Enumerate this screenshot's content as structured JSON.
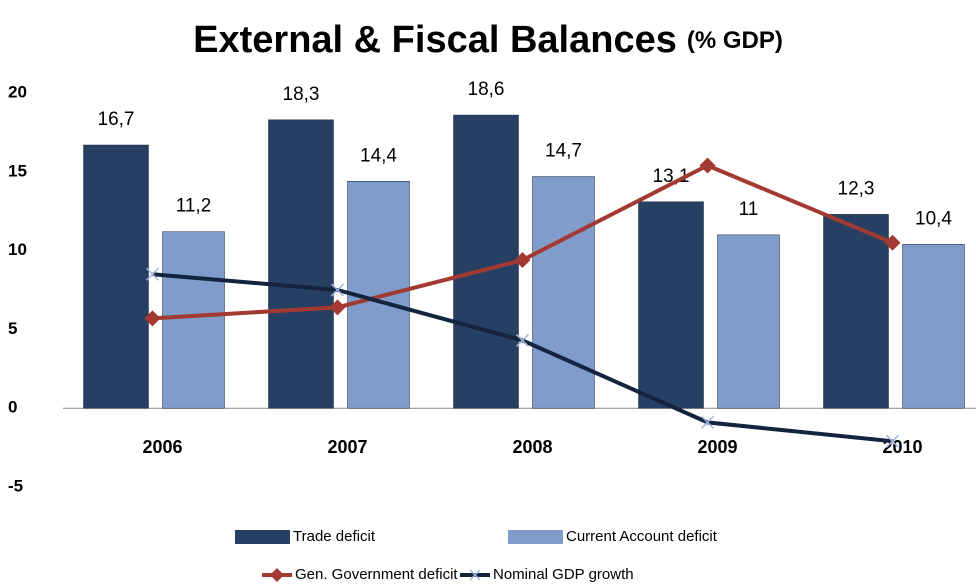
{
  "chart_data": {
    "type": "bar",
    "title": "External & Fiscal Balances",
    "title_unit": "(% GDP)",
    "categories": [
      "2006",
      "2007",
      "2008",
      "2009",
      "2010"
    ],
    "ylim": [
      -5,
      20
    ],
    "yticks": [
      -5,
      0,
      5,
      10,
      15,
      20
    ],
    "grid": false,
    "legend": "bottom",
    "series": [
      {
        "name": "Trade deficit",
        "type": "bar",
        "color": "#263f62",
        "values": [
          16.7,
          18.3,
          18.6,
          13.1,
          12.3
        ],
        "value_labels": [
          "16,7",
          "18,3",
          "18,6",
          "13,1",
          "12,3"
        ]
      },
      {
        "name": "Current Account deficit",
        "type": "bar",
        "color": "#7f9cca",
        "values": [
          11.2,
          14.4,
          14.7,
          11,
          10.4
        ],
        "value_labels": [
          "11,2",
          "14,4",
          "14,7",
          "11",
          "10,4"
        ]
      },
      {
        "name": "Gen. Government deficit",
        "type": "line",
        "color": "#a33a31",
        "values": [
          5.7,
          6.4,
          9.4,
          15.4,
          10.5
        ]
      },
      {
        "name": "Nominal GDP growth",
        "type": "line",
        "color": "#14243e",
        "marker_color": "#9fb6dc",
        "values": [
          8.5,
          7.5,
          4.3,
          -0.9,
          -2.1
        ]
      }
    ]
  }
}
